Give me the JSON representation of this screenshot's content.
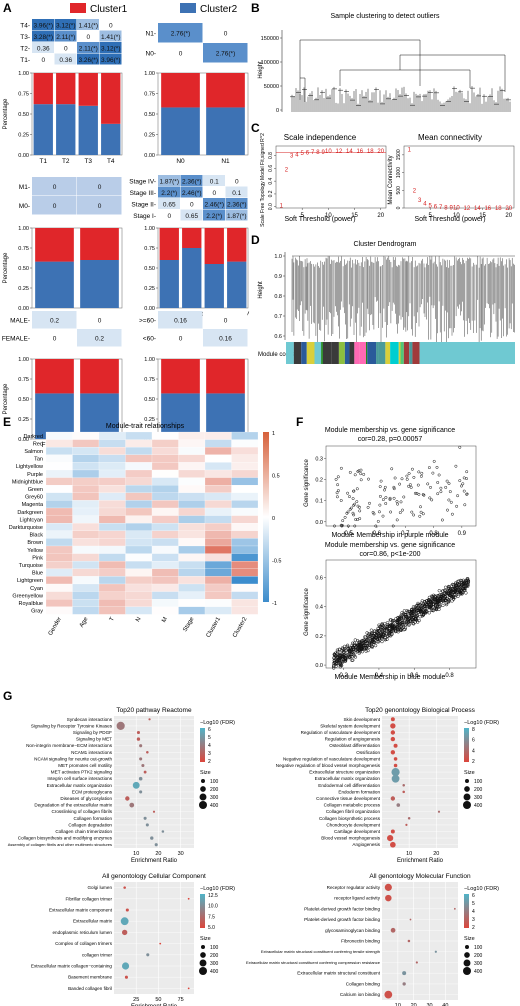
{
  "panels": {
    "A": {
      "letter": "A",
      "legend": [
        {
          "label": "Cluster1",
          "color": "#e0262a"
        },
        {
          "label": "Cluster2",
          "color": "#3d72b4"
        }
      ],
      "t_stage": {
        "rows": [
          "T4-",
          "T3-",
          "T2-",
          "T1-"
        ],
        "cells": [
          [
            "3.96(*)",
            "3.12(*)",
            "1.41(*)",
            "0"
          ],
          [
            "3.28(*)",
            "2.11(*)",
            "0",
            "1.41(*)"
          ],
          [
            "0.36",
            "0",
            "2.11(*)",
            "3.12(*)"
          ],
          [
            "0",
            "0.36",
            "3.26(*)",
            "3.96(*)"
          ]
        ],
        "bar_categories": [
          "T1",
          "T2",
          "T3",
          "T4"
        ],
        "cluster2_pct": [
          0.62,
          0.62,
          0.6,
          0.38
        ],
        "ylabel": "Percentage"
      },
      "n_stage": {
        "rows": [
          "N1-",
          "N0-"
        ],
        "cells": [
          [
            "2.76(*)",
            "0"
          ],
          [
            "0",
            "2.76(*)"
          ]
        ],
        "bar_categories": [
          "N0",
          "N1"
        ],
        "cluster2_pct": [
          0.58,
          0.58
        ]
      },
      "m_stage": {
        "rows": [
          "M1-",
          "M0-"
        ],
        "cells": [
          [
            "0",
            "0"
          ],
          [
            "0",
            "0"
          ]
        ],
        "bar_categories": [
          "M0",
          "M1"
        ],
        "cluster2_pct": [
          0.58,
          0.6
        ],
        "ylabel": "Percentage"
      },
      "stage": {
        "rows": [
          "Stage IV-",
          "Stage III-",
          "Stage II-",
          "Stage I-"
        ],
        "cells": [
          [
            "1.87(*)",
            "2.36(*)",
            "0.1",
            "0"
          ],
          [
            "2.2(*)",
            "2.46(*)",
            "0",
            "0.1"
          ],
          [
            "0.65",
            "0",
            "2.46(*)",
            "2.36(*)"
          ],
          [
            "0",
            "0.65",
            "2.2(*)",
            "1.87(*)"
          ]
        ],
        "bar_categories": [
          "Stage I",
          "Stage II",
          "Stage III",
          "Stage IV"
        ],
        "cluster2_pct": [
          0.6,
          0.75,
          0.55,
          0.58
        ]
      },
      "gender": {
        "rows": [
          "MALE-",
          "FEMALE-"
        ],
        "cells": [
          [
            "0.2",
            "0"
          ],
          [
            "0",
            "0.2"
          ]
        ],
        "bar_categories": [
          "FEMALE",
          "MALE"
        ],
        "cluster2_pct": [
          0.57,
          0.57
        ],
        "ylabel": "Percentage"
      },
      "age": {
        "rows": [
          ">=60-",
          "<60-"
        ],
        "cells": [
          [
            "0.16",
            "0"
          ],
          [
            "0",
            "0.16"
          ]
        ],
        "bar_categories": [
          "<60",
          ">=60"
        ],
        "cluster2_pct": [
          0.57,
          0.57
        ]
      },
      "y_ticks": [
        "0.00",
        "0.25",
        "0.50",
        "0.75",
        "1.00"
      ]
    },
    "B": {
      "letter": "B",
      "title": "Sample clustering to detect outliers",
      "ylabel": "Height",
      "y_ticks": [
        "150000",
        "100000",
        "50000",
        "0"
      ]
    },
    "C": {
      "letter": "C",
      "left": {
        "title": "Scale independence",
        "xlabel": "Soft Threshold (power)",
        "ylabel": "Scale Free Topology Model Fit,signed R^2",
        "x_ticks": [
          "5",
          "10",
          "15",
          "20"
        ],
        "y_ticks": [
          "0.0",
          "0.2",
          "0.4",
          "0.6",
          "0.8"
        ],
        "chart_data": {
          "type": "scatter",
          "x": [
            1,
            2,
            3,
            4,
            5,
            6,
            7,
            8,
            9,
            10,
            12,
            14,
            16,
            18,
            20
          ],
          "y": [
            0.02,
            0.58,
            0.8,
            0.82,
            0.84,
            0.85,
            0.86,
            0.86,
            0.86,
            0.87,
            0.87,
            0.87,
            0.87,
            0.87,
            0.87
          ],
          "labels": [
            "1",
            "2",
            "3",
            "4",
            "5",
            "6",
            "7",
            "8",
            "9",
            "10",
            "12",
            "14",
            "16",
            "18",
            "20"
          ]
        }
      },
      "right": {
        "title": "Mean connectivity",
        "xlabel": "Soft Threshold (power)",
        "ylabel": "Mean Connectivity",
        "x_ticks": [
          "5",
          "10",
          "15",
          "20"
        ],
        "y_ticks": [
          "0",
          "500",
          "1000",
          "1500"
        ],
        "chart_data": {
          "type": "scatter",
          "x": [
            1,
            2,
            3,
            4,
            5,
            6,
            7,
            8,
            9,
            10,
            12,
            14,
            16,
            18,
            20
          ],
          "y": [
            1650,
            500,
            220,
            120,
            70,
            45,
            30,
            20,
            14,
            10,
            6,
            4,
            3,
            2,
            1
          ],
          "labels": [
            "1",
            "2",
            "3",
            "4",
            "5",
            "6",
            "7",
            "8",
            "9",
            "10",
            "12",
            "14",
            "16",
            "18",
            "20"
          ]
        }
      }
    },
    "D": {
      "letter": "D",
      "title": "Cluster Dendrogram",
      "ylabel": "Height",
      "y_ticks": [
        "1.0",
        "0.9",
        "0.8",
        "0.7",
        "0.6"
      ],
      "module_colors_label": "Module colors"
    },
    "E": {
      "letter": "E",
      "title": "Module-trait relationships",
      "modules": [
        "Darkred",
        "Red",
        "Salmon",
        "Tan",
        "Lightyellow",
        "Purple",
        "Midnightblue",
        "Green",
        "Grey60",
        "Magenta",
        "Darkgreen",
        "Lightcyan",
        "Darkturquoise",
        "Black",
        "Brown",
        "Yellow",
        "Pink",
        "Turquoise",
        "Blue",
        "Lightgreen",
        "Cyan",
        "Greenyellow",
        "Royalblue",
        "Gray"
      ],
      "traits": [
        "Gender",
        "Age",
        "T",
        "N",
        "M",
        "Stage",
        "Cluster1",
        "Cluster2"
      ],
      "colorbar_ticks": [
        "1",
        "0.5",
        "0",
        "-0.5",
        "-1"
      ]
    },
    "F": {
      "letter": "F",
      "top": {
        "title": "Module membership vs. gene significance",
        "subtitle": "cor=0.28, p=0.00057",
        "xlabel": "Module Membership in purple module",
        "ylabel": "Gene significance",
        "x_ticks": [
          "0.5",
          "0.6",
          "0.7",
          "0.8",
          "0.9"
        ],
        "y_ticks": [
          "0.0",
          "0.1",
          "0.2",
          "0.3"
        ]
      },
      "bottom": {
        "title": "Module membership vs. gene significance",
        "subtitle": "cor=0.86, p<1e-200",
        "xlabel": "Module Membership in blue module",
        "ylabel": "Gene significance",
        "x_ticks": [
          "0.2",
          "0.4",
          "0.6",
          "0.8"
        ],
        "y_ticks": [
          "0.0",
          "0.2",
          "0.4",
          "0.6"
        ]
      }
    },
    "G": {
      "letter": "G",
      "reactome": {
        "title": "Top20 pathway Reactome",
        "xlabel": "Enrichment Ratio",
        "x_ticks": [
          "10",
          "20",
          "30"
        ],
        "legend_title": "−Log10 (FDR)",
        "legend_ticks": [
          "6",
          "5",
          "4",
          "3",
          "2"
        ],
        "size_title": "Size",
        "size_ticks": [
          "100",
          "200",
          "300",
          "400"
        ],
        "chart_data": {
          "type": "scatter",
          "terms": [
            "Syndecan interactions",
            "Signaling by Receptor Tyrosine Kinases",
            "Signaling by PDGF",
            "Signaling by MET",
            "Non-integrin membrane−ECM interactions",
            "NCAM1 interactions",
            "NCAM signaling for neurite out-growth",
            "MET promotes cell motility",
            "MET activates PTK2 signaling",
            "Integrin cell surface interactions",
            "Extracellular matrix organization",
            "ECM proteoglycans",
            "Diseases of glycosylation",
            "Degradation of the extracellular matrix",
            "Crosslinking of collagen fibrils",
            "Collagen formation",
            "Collagen degradation",
            "Collagen chain trimerization",
            "Collagen biosynthesis and modifying enzymes",
            "Assembly of collagen fibrils and other multimeric structures"
          ],
          "enrichment": [
            16,
            3,
            11,
            11,
            12,
            15,
            12,
            13,
            14,
            12,
            10,
            12,
            6,
            8,
            18,
            14,
            15,
            22,
            17,
            19
          ],
          "size": [
            30,
            420,
            60,
            70,
            60,
            40,
            60,
            60,
            50,
            80,
            300,
            60,
            120,
            140,
            30,
            60,
            60,
            40,
            70,
            60
          ],
          "neglog10fdr": [
            3,
            4,
            3,
            3,
            4,
            3,
            4,
            4,
            3,
            5,
            6,
            5,
            3,
            4,
            3,
            5,
            5,
            5,
            5,
            5
          ]
        }
      },
      "bp": {
        "title": "Top20 genontology Biological Process",
        "xlabel": "Enrichment Ratio",
        "x_ticks": [
          "10",
          "20"
        ],
        "legend_title": "−Log10 (FDR)",
        "legend_ticks": [
          "8",
          "6",
          "4",
          "2"
        ],
        "size_title": "Size",
        "size_ticks": [
          "100",
          "200",
          "300",
          "400"
        ],
        "chart_data": {
          "type": "scatter",
          "terms": [
            "Skin development",
            "Skeletal system development",
            "Regulation of vasculature development",
            "Regulation of angiogenesis",
            "Osteoblast differentiation",
            "Ossification",
            "Negative regulation of vasculature development",
            "Negative regulation of blood vessel morphogenesis",
            "Extracellular structure organization",
            "Extracellular matrix organization",
            "Endodermal cell differentiation",
            "Endoderm formation",
            "Connective tissue development",
            "Collagen metabolic process",
            "Collagen fibril organization",
            "Collagen biosynthetic process",
            "Chondrocyte development",
            "Cartilage development",
            "Blood vessel morphogenesis",
            "Angiogenesis"
          ],
          "enrichment": [
            4,
            4,
            4,
            4,
            5,
            4,
            5,
            5,
            5,
            5,
            8,
            8,
            4,
            6,
            21,
            10,
            9,
            4,
            3,
            4
          ],
          "size": [
            100,
            180,
            120,
            120,
            100,
            120,
            80,
            80,
            420,
            380,
            40,
            40,
            120,
            80,
            30,
            40,
            30,
            100,
            240,
            200
          ],
          "neglog10fdr": [
            2,
            2,
            2,
            2,
            2,
            2,
            2,
            2,
            7,
            7,
            4,
            3,
            3,
            5,
            4,
            4,
            3,
            2,
            2,
            2
          ]
        }
      },
      "cc": {
        "title": "All genontology Cellular Component",
        "xlabel": "Enrichment Ratio",
        "x_ticks": [
          "25",
          "50",
          "75"
        ],
        "legend_title": "−Log10 (FDR)",
        "legend_ticks": [
          "12.5",
          "10.0",
          "7.5",
          "5.0"
        ],
        "size_title": "Size",
        "size_ticks": [
          "100",
          "200",
          "300",
          "400"
        ],
        "chart_data": {
          "type": "scatter",
          "terms": [
            "Golgi lumen",
            "Fibrillar collagen trimer",
            "Extracellular matrix component",
            "Extracellular matrix",
            "endoplasmic reticulum lumen",
            "Complex of collagen trimers",
            "collagen trimer",
            "Extracellular matrix collagen−containing",
            "Basement membrane",
            "Banded collagen fibril"
          ],
          "enrichment": [
            12,
            84,
            15,
            12,
            12,
            52,
            38,
            13,
            14,
            84
          ],
          "size": [
            40,
            20,
            60,
            380,
            180,
            20,
            60,
            320,
            60,
            20
          ],
          "neglog10fdr": [
            5,
            4,
            5,
            12,
            6,
            4,
            10,
            12,
            5,
            4
          ]
        }
      },
      "mf": {
        "title": "All genontology Molecular Function",
        "xlabel": "Enrichment Ratio",
        "x_ticks": [
          "10",
          "20",
          "30",
          "40"
        ],
        "legend_title": "−Log10 (FDR)",
        "legend_ticks": [
          "6",
          "5",
          "4",
          "3",
          "2"
        ],
        "size_title": "Size",
        "size_ticks": [
          "100",
          "200",
          "300",
          "400"
        ],
        "chart_data": {
          "type": "scatter",
          "terms": [
            "Receptor regulator activity",
            "receptor ligand activity",
            "Platelet-derived growth factor binding",
            "Platelet-derived growth factor binding",
            "glycosaminoglycan binding",
            "Fibronectin binding",
            "Extracellular matrix structural constituent conferring tensile strength",
            "Extracellular matrix structural constituent conferring compression resistance",
            "Extracellular matrix structural constituent",
            "Collagen binding",
            "Calcium ion binding"
          ],
          "enrichment": [
            4,
            4,
            46,
            18,
            7,
            17,
            34,
            22,
            14,
            14,
            4
          ],
          "size": [
            320,
            260,
            20,
            20,
            140,
            40,
            30,
            30,
            100,
            70,
            380
          ],
          "neglog10fdr": [
            2,
            2,
            3,
            3,
            3,
            3,
            5,
            3,
            5,
            4,
            2
          ]
        }
      }
    }
  }
}
